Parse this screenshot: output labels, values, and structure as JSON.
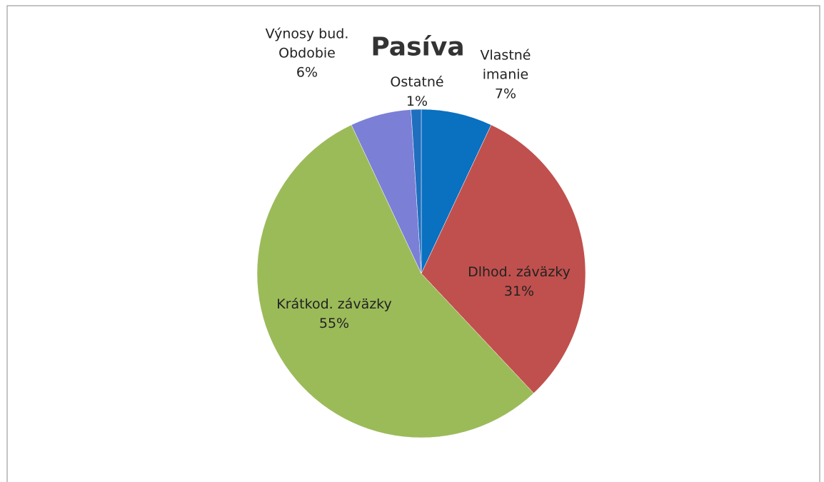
{
  "chart_data": {
    "type": "pie",
    "title": "Pasíva",
    "categories": [
      "Vlastné imanie",
      "Dlhod. záväzky",
      "Krátkod. záväzky",
      "Výnosy bud. Obdobie",
      "Ostatné"
    ],
    "values": [
      7,
      31,
      55,
      6,
      1
    ],
    "value_labels": [
      "7%",
      "31%",
      "55%",
      "6%",
      "1%"
    ],
    "colors": [
      "#0a70c0",
      "#c0504d",
      "#9bbb59",
      "#7b7fd6",
      "#1f6fbf"
    ]
  }
}
